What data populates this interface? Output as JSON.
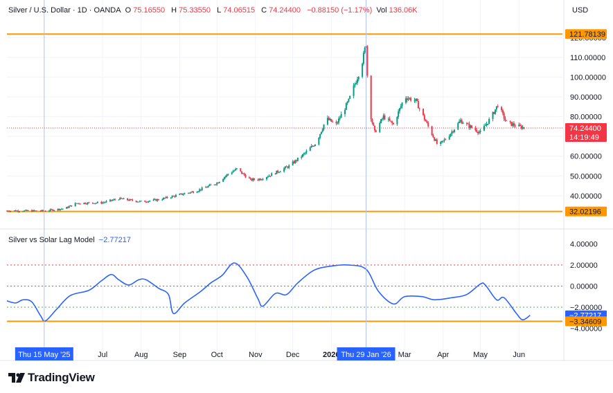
{
  "header": {
    "symbol": "Silver / U.S. Dollar · 1D · OANDA",
    "o_label": "O",
    "o_value": "75.16550",
    "h_label": "H",
    "h_value": "75.33550",
    "l_label": "L",
    "l_value": "74.06515",
    "c_label": "C",
    "c_value": "74.24400",
    "change": "−0.88150 (−1.17%)",
    "vol_label": "Vol",
    "vol_value": "136.06K",
    "currency": "USD"
  },
  "indicator": {
    "name": "Silver vs Solar Lag Model",
    "value": "−2.77217"
  },
  "brand": {
    "name": "TradingView",
    "icon": "tradingview-logo-icon"
  },
  "colors": {
    "up": "#089981",
    "down": "#f23645",
    "indicator": "#2962ff",
    "level": "#ff9800",
    "crosshair": "#2962ff",
    "price_line": "#f23645",
    "upper_band": "#f23645",
    "lower_band": "#4caf50",
    "zero": "#787b86"
  },
  "chart_data": [
    {
      "type": "candlestick",
      "title": "Silver / U.S. Dollar · 1D · OANDA",
      "ylim": [
        27.0,
        125.0
      ],
      "y_ticks": [
        "40.00000",
        "50.00000",
        "60.00000",
        "70.00000",
        "80.00000",
        "90.00000",
        "100.00000",
        "110.00000",
        "120.00000"
      ],
      "x_ticks": [
        "Jul",
        "Aug",
        "Sep",
        "Oct",
        "Nov",
        "Dec",
        "2026",
        "Mar",
        "Apr",
        "May",
        "Jun"
      ],
      "x_range": [
        "2025-04-15",
        "2026-07-06"
      ],
      "levels": [
        {
          "label": "121.78139",
          "value": 121.78139
        },
        {
          "label": "32.02196",
          "value": 32.02196
        }
      ],
      "last_price": {
        "label": "74.24400",
        "value": 74.244,
        "countdown": "14:19:49"
      },
      "crosshair_date": "Thu 15 May '25",
      "crosshair_date_2": "Thu 29 Jan '26",
      "close_path": [
        {
          "date": "2025-04-15",
          "close": 32.4
        },
        {
          "date": "2025-05-15",
          "close": 32.3
        },
        {
          "date": "2025-06-01",
          "close": 33.6
        },
        {
          "date": "2025-06-10",
          "close": 36.2
        },
        {
          "date": "2025-07-01",
          "close": 36.5
        },
        {
          "date": "2025-07-14",
          "close": 38.5
        },
        {
          "date": "2025-08-01",
          "close": 37.0
        },
        {
          "date": "2025-08-15",
          "close": 38.0
        },
        {
          "date": "2025-09-01",
          "close": 40.5
        },
        {
          "date": "2025-09-15",
          "close": 42.5
        },
        {
          "date": "2025-10-01",
          "close": 46.5
        },
        {
          "date": "2025-10-10",
          "close": 51.0
        },
        {
          "date": "2025-10-17",
          "close": 53.5
        },
        {
          "date": "2025-10-28",
          "close": 48.0
        },
        {
          "date": "2025-11-05",
          "close": 48.5
        },
        {
          "date": "2025-11-15",
          "close": 51.0
        },
        {
          "date": "2025-11-28",
          "close": 55.0
        },
        {
          "date": "2025-12-10",
          "close": 61.0
        },
        {
          "date": "2025-12-20",
          "close": 67.0
        },
        {
          "date": "2025-12-28",
          "close": 79.0
        },
        {
          "date": "2026-01-05",
          "close": 76.0
        },
        {
          "date": "2026-01-15",
          "close": 88.0
        },
        {
          "date": "2026-01-25",
          "close": 105.0
        },
        {
          "date": "2026-01-29",
          "close": 117.0
        },
        {
          "date": "2026-01-31",
          "close": 85.0
        },
        {
          "date": "2026-02-05",
          "close": 72.0
        },
        {
          "date": "2026-02-12",
          "close": 80.0
        },
        {
          "date": "2026-02-20",
          "close": 76.0
        },
        {
          "date": "2026-03-01",
          "close": 90.0
        },
        {
          "date": "2026-03-10",
          "close": 88.0
        },
        {
          "date": "2026-03-20",
          "close": 75.0
        },
        {
          "date": "2026-03-28",
          "close": 65.0
        },
        {
          "date": "2026-04-05",
          "close": 70.0
        },
        {
          "date": "2026-04-15",
          "close": 78.0
        },
        {
          "date": "2026-04-25",
          "close": 74.0
        },
        {
          "date": "2026-05-01",
          "close": 72.0
        },
        {
          "date": "2026-05-10",
          "close": 80.0
        },
        {
          "date": "2026-05-15",
          "close": 86.0
        },
        {
          "date": "2026-05-22",
          "close": 77.0
        },
        {
          "date": "2026-06-01",
          "close": 75.0
        },
        {
          "date": "2026-06-06",
          "close": 74.244
        }
      ]
    },
    {
      "type": "line",
      "title": "Silver vs Solar Lag Model",
      "ylim": [
        -4.5,
        4.5
      ],
      "y_ticks": [
        "4.00000",
        "2.00000",
        "0.00000",
        "−2.00000",
        "−4.00000"
      ],
      "bands": {
        "upper": 2.0,
        "zero": 0.0,
        "lower": -2.0
      },
      "levels": [
        {
          "label": "−3.34609",
          "value": -3.34609
        }
      ],
      "last_value": {
        "label": "−2.77217",
        "value": -2.77217
      },
      "series": [
        {
          "points": [
            {
              "date": "2025-04-15",
              "value": -1.4
            },
            {
              "date": "2025-04-22",
              "value": -1.6
            },
            {
              "date": "2025-04-28",
              "value": -1.3
            },
            {
              "date": "2025-05-05",
              "value": -1.5
            },
            {
              "date": "2025-05-12",
              "value": -2.8
            },
            {
              "date": "2025-05-16",
              "value": -3.3
            },
            {
              "date": "2025-05-25",
              "value": -2.2
            },
            {
              "date": "2025-06-05",
              "value": -0.9
            },
            {
              "date": "2025-06-20",
              "value": -0.4
            },
            {
              "date": "2025-06-30",
              "value": 0.5
            },
            {
              "date": "2025-07-08",
              "value": 1.1
            },
            {
              "date": "2025-07-14",
              "value": 0.6
            },
            {
              "date": "2025-07-22",
              "value": 0.1
            },
            {
              "date": "2025-07-30",
              "value": 0.6
            },
            {
              "date": "2025-08-05",
              "value": 0.6
            },
            {
              "date": "2025-08-15",
              "value": -0.2
            },
            {
              "date": "2025-08-23",
              "value": -0.8
            },
            {
              "date": "2025-08-27",
              "value": -2.6
            },
            {
              "date": "2025-09-05",
              "value": -1.6
            },
            {
              "date": "2025-09-18",
              "value": -0.5
            },
            {
              "date": "2025-09-26",
              "value": 0.3
            },
            {
              "date": "2025-10-05",
              "value": 1.0
            },
            {
              "date": "2025-10-15",
              "value": 2.2
            },
            {
              "date": "2025-10-25",
              "value": 0.9
            },
            {
              "date": "2025-11-03",
              "value": -1.2
            },
            {
              "date": "2025-11-07",
              "value": -1.9
            },
            {
              "date": "2025-11-17",
              "value": -0.7
            },
            {
              "date": "2025-11-26",
              "value": -0.8
            },
            {
              "date": "2025-12-05",
              "value": 0.3
            },
            {
              "date": "2025-12-18",
              "value": 1.5
            },
            {
              "date": "2026-01-01",
              "value": 1.9
            },
            {
              "date": "2026-01-15",
              "value": 2.0
            },
            {
              "date": "2026-01-29",
              "value": 1.6
            },
            {
              "date": "2026-02-08",
              "value": -0.5
            },
            {
              "date": "2026-02-20",
              "value": -1.7
            },
            {
              "date": "2026-03-01",
              "value": -1.0
            },
            {
              "date": "2026-03-15",
              "value": -1.0
            },
            {
              "date": "2026-03-25",
              "value": -1.3
            },
            {
              "date": "2026-04-08",
              "value": -1.1
            },
            {
              "date": "2026-04-20",
              "value": -0.8
            },
            {
              "date": "2026-05-01",
              "value": 0.2
            },
            {
              "date": "2026-05-05",
              "value": 0.1
            },
            {
              "date": "2026-05-14",
              "value": -1.3
            },
            {
              "date": "2026-05-20",
              "value": -1.1
            },
            {
              "date": "2026-05-30",
              "value": -2.6
            },
            {
              "date": "2026-06-04",
              "value": -3.2
            },
            {
              "date": "2026-06-10",
              "value": -2.77217
            }
          ]
        }
      ]
    }
  ]
}
